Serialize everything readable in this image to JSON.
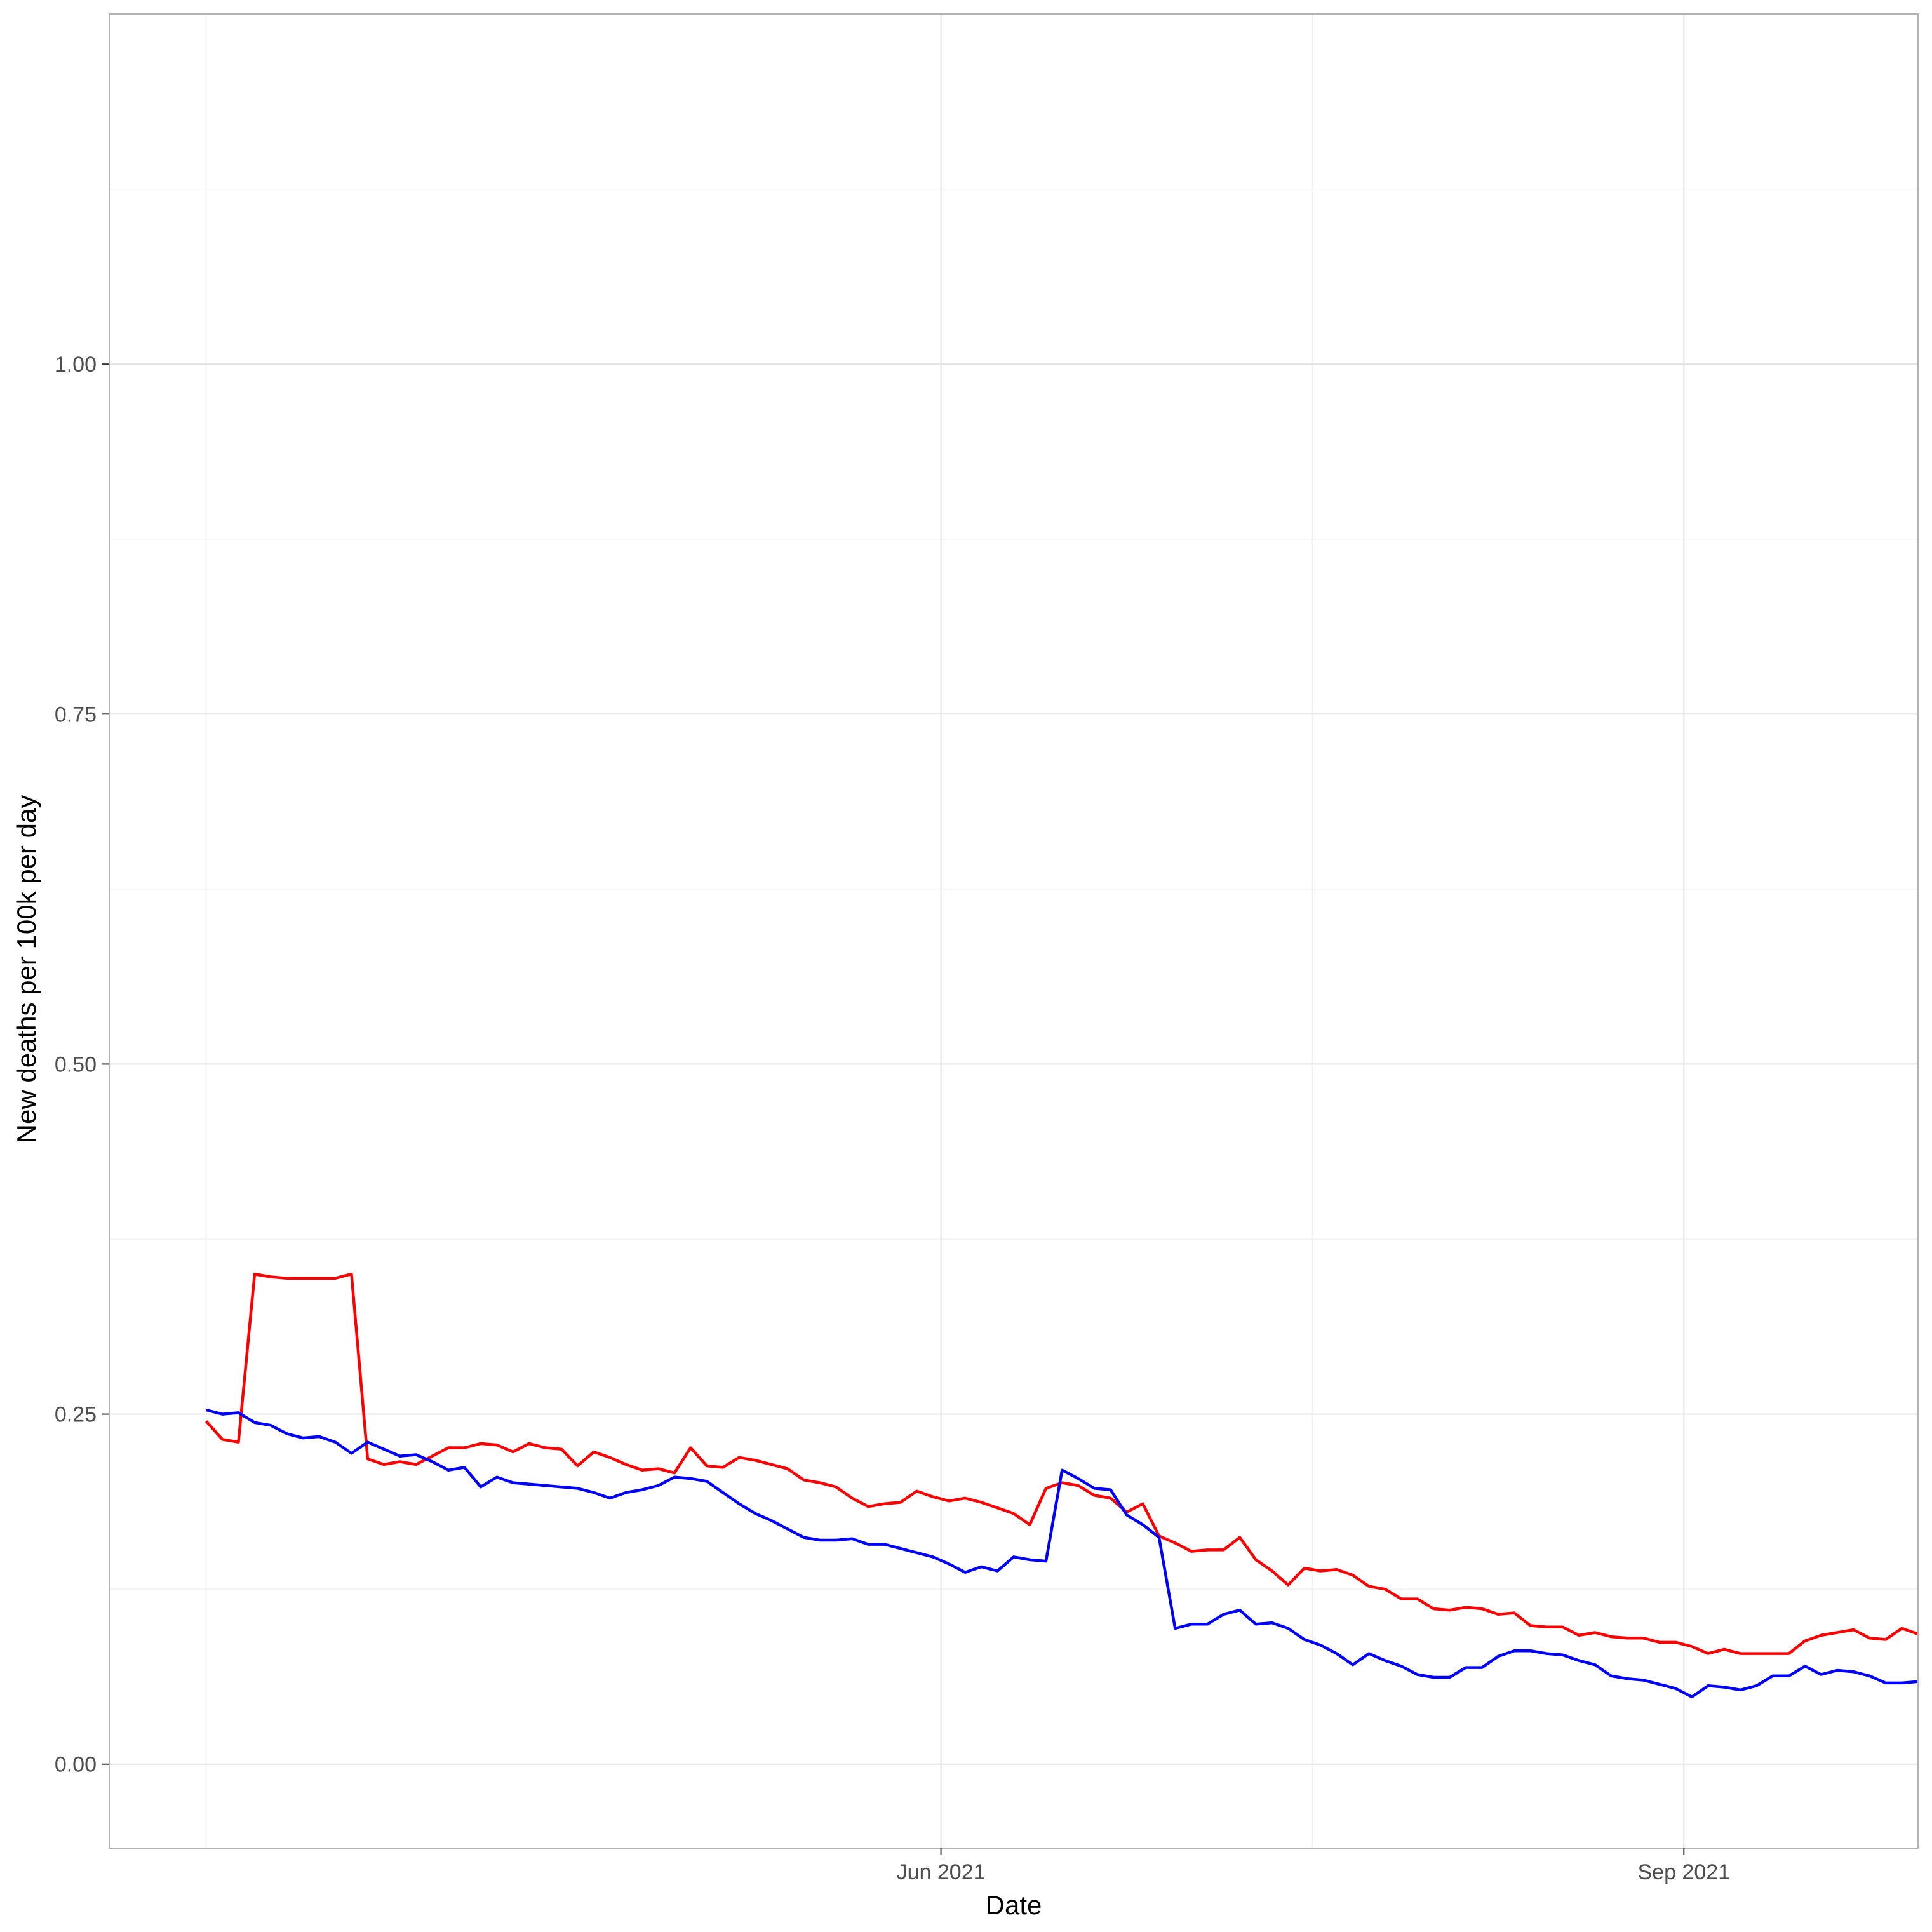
{
  "chart_data": {
    "type": "line",
    "title": "",
    "xlabel": "Date",
    "ylabel": "New deaths per 100k per day",
    "ylim": [
      -0.06,
      1.25
    ],
    "xlim": [
      "2021-02-18",
      "2021-09-30"
    ],
    "grid": true,
    "y_ticks": [
      {
        "value": 0.0,
        "label": "0.00"
      },
      {
        "value": 0.25,
        "label": "0.25"
      },
      {
        "value": 0.5,
        "label": "0.50"
      },
      {
        "value": 0.75,
        "label": "0.75"
      },
      {
        "value": 1.0,
        "label": "1.00"
      }
    ],
    "y_minor_gridlines": [
      0.125,
      0.375,
      0.625,
      0.875,
      1.125
    ],
    "x_ticks": [
      {
        "value": "2021-06-01",
        "label": "Jun 2021"
      },
      {
        "value": "2021-09-01",
        "label": "Sep 2021"
      }
    ],
    "x_minor_gridlines": [
      "2021-03-02",
      "2021-07-17"
    ],
    "series": [
      {
        "color": "#ff0000",
        "points": [
          [
            "2021-03-02",
            0.245
          ],
          [
            "2021-03-04",
            0.232
          ],
          [
            "2021-03-06",
            0.23
          ],
          [
            "2021-03-08",
            0.35
          ],
          [
            "2021-03-10",
            0.348
          ],
          [
            "2021-03-12",
            0.347
          ],
          [
            "2021-03-14",
            0.347
          ],
          [
            "2021-03-16",
            0.347
          ],
          [
            "2021-03-18",
            0.347
          ],
          [
            "2021-03-20",
            0.35
          ],
          [
            "2021-03-22",
            0.218
          ],
          [
            "2021-03-24",
            0.214
          ],
          [
            "2021-03-26",
            0.216
          ],
          [
            "2021-03-28",
            0.214
          ],
          [
            "2021-03-30",
            0.22
          ],
          [
            "2021-04-01",
            0.226
          ],
          [
            "2021-04-03",
            0.226
          ],
          [
            "2021-04-05",
            0.229
          ],
          [
            "2021-04-07",
            0.228
          ],
          [
            "2021-04-09",
            0.223
          ],
          [
            "2021-04-11",
            0.229
          ],
          [
            "2021-04-13",
            0.226
          ],
          [
            "2021-04-15",
            0.225
          ],
          [
            "2021-04-17",
            0.213
          ],
          [
            "2021-04-19",
            0.223
          ],
          [
            "2021-04-21",
            0.219
          ],
          [
            "2021-04-23",
            0.214
          ],
          [
            "2021-04-25",
            0.21
          ],
          [
            "2021-04-27",
            0.211
          ],
          [
            "2021-04-29",
            0.208
          ],
          [
            "2021-05-01",
            0.226
          ],
          [
            "2021-05-03",
            0.213
          ],
          [
            "2021-05-05",
            0.212
          ],
          [
            "2021-05-07",
            0.219
          ],
          [
            "2021-05-09",
            0.217
          ],
          [
            "2021-05-11",
            0.214
          ],
          [
            "2021-05-13",
            0.211
          ],
          [
            "2021-05-15",
            0.203
          ],
          [
            "2021-05-17",
            0.201
          ],
          [
            "2021-05-19",
            0.198
          ],
          [
            "2021-05-21",
            0.19
          ],
          [
            "2021-05-23",
            0.184
          ],
          [
            "2021-05-25",
            0.186
          ],
          [
            "2021-05-27",
            0.187
          ],
          [
            "2021-05-29",
            0.195
          ],
          [
            "2021-05-31",
            0.191
          ],
          [
            "2021-06-02",
            0.188
          ],
          [
            "2021-06-04",
            0.19
          ],
          [
            "2021-06-06",
            0.187
          ],
          [
            "2021-06-08",
            0.183
          ],
          [
            "2021-06-10",
            0.179
          ],
          [
            "2021-06-12",
            0.171
          ],
          [
            "2021-06-14",
            0.197
          ],
          [
            "2021-06-16",
            0.201
          ],
          [
            "2021-06-18",
            0.199
          ],
          [
            "2021-06-20",
            0.192
          ],
          [
            "2021-06-22",
            0.19
          ],
          [
            "2021-06-24",
            0.18
          ],
          [
            "2021-06-26",
            0.186
          ],
          [
            "2021-06-28",
            0.163
          ],
          [
            "2021-06-30",
            0.158
          ],
          [
            "2021-07-02",
            0.152
          ],
          [
            "2021-07-04",
            0.153
          ],
          [
            "2021-07-06",
            0.153
          ],
          [
            "2021-07-08",
            0.162
          ],
          [
            "2021-07-10",
            0.146
          ],
          [
            "2021-07-12",
            0.138
          ],
          [
            "2021-07-14",
            0.128
          ],
          [
            "2021-07-16",
            0.14
          ],
          [
            "2021-07-18",
            0.138
          ],
          [
            "2021-07-20",
            0.139
          ],
          [
            "2021-07-22",
            0.135
          ],
          [
            "2021-07-24",
            0.127
          ],
          [
            "2021-07-26",
            0.125
          ],
          [
            "2021-07-28",
            0.118
          ],
          [
            "2021-07-30",
            0.118
          ],
          [
            "2021-08-01",
            0.111
          ],
          [
            "2021-08-03",
            0.11
          ],
          [
            "2021-08-05",
            0.112
          ],
          [
            "2021-08-07",
            0.111
          ],
          [
            "2021-08-09",
            0.107
          ],
          [
            "2021-08-11",
            0.108
          ],
          [
            "2021-08-13",
            0.099
          ],
          [
            "2021-08-15",
            0.098
          ],
          [
            "2021-08-17",
            0.098
          ],
          [
            "2021-08-19",
            0.092
          ],
          [
            "2021-08-21",
            0.094
          ],
          [
            "2021-08-23",
            0.091
          ],
          [
            "2021-08-25",
            0.09
          ],
          [
            "2021-08-27",
            0.09
          ],
          [
            "2021-08-29",
            0.087
          ],
          [
            "2021-08-31",
            0.087
          ],
          [
            "2021-09-02",
            0.084
          ],
          [
            "2021-09-04",
            0.079
          ],
          [
            "2021-09-06",
            0.082
          ],
          [
            "2021-09-08",
            0.079
          ],
          [
            "2021-09-10",
            0.079
          ],
          [
            "2021-09-12",
            0.079
          ],
          [
            "2021-09-14",
            0.079
          ],
          [
            "2021-09-16",
            0.088
          ],
          [
            "2021-09-18",
            0.092
          ],
          [
            "2021-09-20",
            0.094
          ],
          [
            "2021-09-22",
            0.096
          ],
          [
            "2021-09-24",
            0.09
          ],
          [
            "2021-09-26",
            0.089
          ],
          [
            "2021-09-28",
            0.097
          ],
          [
            "2021-09-30",
            0.093
          ]
        ]
      },
      {
        "color": "#0000ff",
        "points": [
          [
            "2021-03-02",
            0.253
          ],
          [
            "2021-03-04",
            0.25
          ],
          [
            "2021-03-06",
            0.251
          ],
          [
            "2021-03-08",
            0.244
          ],
          [
            "2021-03-10",
            0.242
          ],
          [
            "2021-03-12",
            0.236
          ],
          [
            "2021-03-14",
            0.233
          ],
          [
            "2021-03-16",
            0.234
          ],
          [
            "2021-03-18",
            0.23
          ],
          [
            "2021-03-20",
            0.222
          ],
          [
            "2021-03-22",
            0.23
          ],
          [
            "2021-03-24",
            0.225
          ],
          [
            "2021-03-26",
            0.22
          ],
          [
            "2021-03-28",
            0.221
          ],
          [
            "2021-03-30",
            0.216
          ],
          [
            "2021-04-01",
            0.21
          ],
          [
            "2021-04-03",
            0.212
          ],
          [
            "2021-04-05",
            0.198
          ],
          [
            "2021-04-07",
            0.205
          ],
          [
            "2021-04-09",
            0.201
          ],
          [
            "2021-04-11",
            0.2
          ],
          [
            "2021-04-13",
            0.199
          ],
          [
            "2021-04-15",
            0.198
          ],
          [
            "2021-04-17",
            0.197
          ],
          [
            "2021-04-19",
            0.194
          ],
          [
            "2021-04-21",
            0.19
          ],
          [
            "2021-04-23",
            0.194
          ],
          [
            "2021-04-25",
            0.196
          ],
          [
            "2021-04-27",
            0.199
          ],
          [
            "2021-04-29",
            0.205
          ],
          [
            "2021-05-01",
            0.204
          ],
          [
            "2021-05-03",
            0.202
          ],
          [
            "2021-05-05",
            0.194
          ],
          [
            "2021-05-07",
            0.186
          ],
          [
            "2021-05-09",
            0.179
          ],
          [
            "2021-05-11",
            0.174
          ],
          [
            "2021-05-13",
            0.168
          ],
          [
            "2021-05-15",
            0.162
          ],
          [
            "2021-05-17",
            0.16
          ],
          [
            "2021-05-19",
            0.16
          ],
          [
            "2021-05-21",
            0.161
          ],
          [
            "2021-05-23",
            0.157
          ],
          [
            "2021-05-25",
            0.157
          ],
          [
            "2021-05-27",
            0.154
          ],
          [
            "2021-05-29",
            0.151
          ],
          [
            "2021-05-31",
            0.148
          ],
          [
            "2021-06-02",
            0.143
          ],
          [
            "2021-06-04",
            0.137
          ],
          [
            "2021-06-06",
            0.141
          ],
          [
            "2021-06-08",
            0.138
          ],
          [
            "2021-06-10",
            0.148
          ],
          [
            "2021-06-12",
            0.146
          ],
          [
            "2021-06-14",
            0.145
          ],
          [
            "2021-06-16",
            0.21
          ],
          [
            "2021-06-18",
            0.204
          ],
          [
            "2021-06-20",
            0.197
          ],
          [
            "2021-06-22",
            0.196
          ],
          [
            "2021-06-24",
            0.178
          ],
          [
            "2021-06-26",
            0.171
          ],
          [
            "2021-06-28",
            0.162
          ],
          [
            "2021-06-30",
            0.097
          ],
          [
            "2021-07-02",
            0.1
          ],
          [
            "2021-07-04",
            0.1
          ],
          [
            "2021-07-06",
            0.107
          ],
          [
            "2021-07-08",
            0.11
          ],
          [
            "2021-07-10",
            0.1
          ],
          [
            "2021-07-12",
            0.101
          ],
          [
            "2021-07-14",
            0.097
          ],
          [
            "2021-07-16",
            0.089
          ],
          [
            "2021-07-18",
            0.085
          ],
          [
            "2021-07-20",
            0.079
          ],
          [
            "2021-07-22",
            0.071
          ],
          [
            "2021-07-24",
            0.079
          ],
          [
            "2021-07-26",
            0.074
          ],
          [
            "2021-07-28",
            0.07
          ],
          [
            "2021-07-30",
            0.064
          ],
          [
            "2021-08-01",
            0.062
          ],
          [
            "2021-08-03",
            0.062
          ],
          [
            "2021-08-05",
            0.069
          ],
          [
            "2021-08-07",
            0.069
          ],
          [
            "2021-08-09",
            0.077
          ],
          [
            "2021-08-11",
            0.081
          ],
          [
            "2021-08-13",
            0.081
          ],
          [
            "2021-08-15",
            0.079
          ],
          [
            "2021-08-17",
            0.078
          ],
          [
            "2021-08-19",
            0.074
          ],
          [
            "2021-08-21",
            0.071
          ],
          [
            "2021-08-23",
            0.063
          ],
          [
            "2021-08-25",
            0.061
          ],
          [
            "2021-08-27",
            0.06
          ],
          [
            "2021-08-29",
            0.057
          ],
          [
            "2021-08-31",
            0.054
          ],
          [
            "2021-09-02",
            0.048
          ],
          [
            "2021-09-04",
            0.056
          ],
          [
            "2021-09-06",
            0.055
          ],
          [
            "2021-09-08",
            0.053
          ],
          [
            "2021-09-10",
            0.056
          ],
          [
            "2021-09-12",
            0.063
          ],
          [
            "2021-09-14",
            0.063
          ],
          [
            "2021-09-16",
            0.07
          ],
          [
            "2021-09-18",
            0.064
          ],
          [
            "2021-09-20",
            0.067
          ],
          [
            "2021-09-22",
            0.066
          ],
          [
            "2021-09-24",
            0.063
          ],
          [
            "2021-09-26",
            0.058
          ],
          [
            "2021-09-28",
            0.058
          ],
          [
            "2021-09-30",
            0.059
          ]
        ]
      }
    ]
  }
}
